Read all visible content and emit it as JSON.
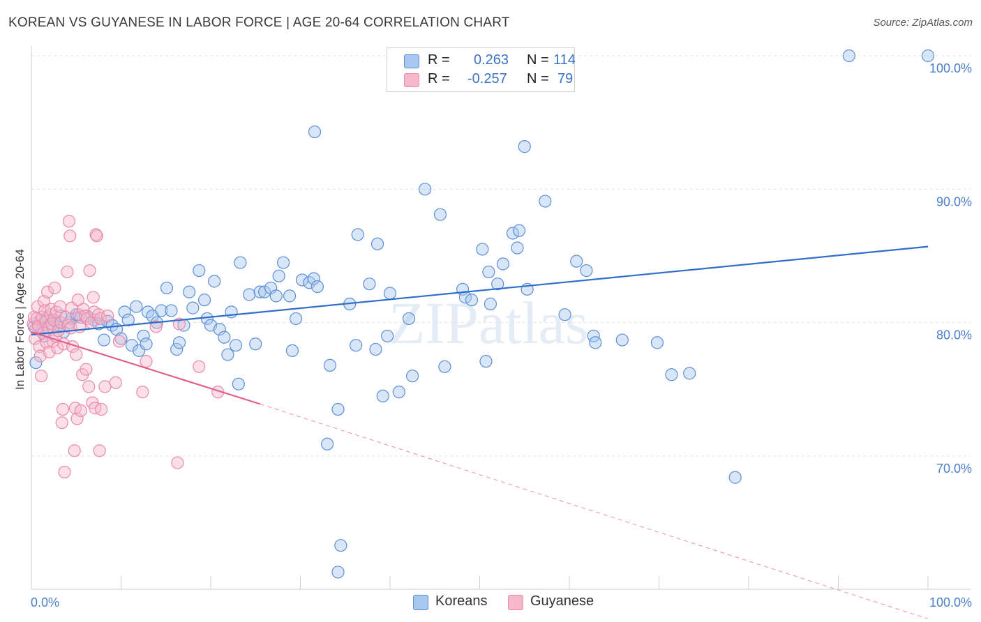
{
  "header": {
    "title": "KOREAN VS GUYANESE IN LABOR FORCE | AGE 20-64 CORRELATION CHART",
    "source": "Source: ZipAtlas.com"
  },
  "watermark": "ZIPatlas",
  "legend": {
    "rows": [
      {
        "r_label": "R =",
        "r_value": "0.263",
        "n_label": "N =",
        "n_value": "114"
      },
      {
        "r_label": "R =",
        "r_value": "-0.257",
        "n_label": "N =",
        "n_value": "79"
      }
    ],
    "bottom": [
      "Koreans",
      "Guyanese"
    ]
  },
  "colors": {
    "koreans_fill": "#a9c8f0",
    "koreans_stroke": "#5b8fd6",
    "koreans_line": "#2f6fca",
    "guyanese_fill": "#f7b8cc",
    "guyanese_stroke": "#e98aa8",
    "guyanese_line": "#e0608d",
    "tick_text": "#4a7fc7",
    "grid": "#e3e3e3"
  },
  "chart_data": {
    "type": "scatter",
    "title": "KOREAN VS GUYANESE IN LABOR FORCE | AGE 20-64 CORRELATION CHART",
    "xlabel": "",
    "ylabel": "In Labor Force | Age 20-64",
    "xlim": [
      0,
      100
    ],
    "ylim": [
      60,
      100
    ],
    "x_tick_labels": [
      "0.0%",
      "100.0%"
    ],
    "y_ticks": [
      70,
      80,
      90,
      100
    ],
    "y_tick_labels": [
      "70.0%",
      "80.0%",
      "90.0%",
      "100.0%"
    ],
    "grid": true,
    "legend_position": "top-center",
    "series": [
      {
        "name": "Koreans",
        "r": 0.263,
        "n": 114,
        "trend": {
          "x": [
            0,
            100
          ],
          "y": [
            79.1,
            85.7
          ]
        },
        "points": [
          [
            0.3,
            79.7
          ],
          [
            0.5,
            77
          ],
          [
            0.8,
            79.8
          ],
          [
            1,
            80.2
          ],
          [
            1.2,
            79.5
          ],
          [
            1.5,
            79
          ],
          [
            1.8,
            80.4
          ],
          [
            2.1,
            79.9
          ],
          [
            2.4,
            79.6
          ],
          [
            2.7,
            80.1
          ],
          [
            3,
            79.8
          ],
          [
            3.3,
            80.5
          ],
          [
            3.6,
            79.3
          ],
          [
            4.2,
            80
          ],
          [
            4.5,
            80.3
          ],
          [
            5,
            80.6
          ],
          [
            5.5,
            80.4
          ],
          [
            6.2,
            80.5
          ],
          [
            7,
            80.2
          ],
          [
            7.5,
            79.9
          ],
          [
            8.1,
            78.7
          ],
          [
            8.5,
            80.1
          ],
          [
            9,
            79.8
          ],
          [
            9.5,
            79.5
          ],
          [
            10,
            78.8
          ],
          [
            10.4,
            80.8
          ],
          [
            10.8,
            80.2
          ],
          [
            11.2,
            78.3
          ],
          [
            11.7,
            81.2
          ],
          [
            12,
            77.9
          ],
          [
            12.5,
            79
          ],
          [
            12.8,
            78.4
          ],
          [
            13,
            80.8
          ],
          [
            13.5,
            80.5
          ],
          [
            14,
            80
          ],
          [
            14.5,
            80.9
          ],
          [
            15.1,
            82.6
          ],
          [
            15.6,
            80.9
          ],
          [
            16.2,
            78
          ],
          [
            16.5,
            78.5
          ],
          [
            17,
            79.8
          ],
          [
            17.6,
            82.3
          ],
          [
            18,
            81.1
          ],
          [
            18.7,
            83.9
          ],
          [
            19.3,
            81.7
          ],
          [
            19.6,
            80.3
          ],
          [
            20,
            79.8
          ],
          [
            20.4,
            83.1
          ],
          [
            21,
            79.5
          ],
          [
            21.5,
            78.9
          ],
          [
            21.9,
            77.6
          ],
          [
            22.3,
            80.8
          ],
          [
            22.8,
            78.3
          ],
          [
            23.1,
            75.4
          ],
          [
            23.3,
            84.5
          ],
          [
            24.3,
            82.1
          ],
          [
            25,
            78.4
          ],
          [
            25.5,
            82.3
          ],
          [
            26,
            82.3
          ],
          [
            26.7,
            82.6
          ],
          [
            27.3,
            82
          ],
          [
            27.6,
            83.5
          ],
          [
            28.1,
            84.5
          ],
          [
            28.8,
            82
          ],
          [
            29.1,
            77.9
          ],
          [
            29.5,
            80.3
          ],
          [
            30.2,
            83.2
          ],
          [
            31,
            83
          ],
          [
            31.5,
            83.3
          ],
          [
            31.9,
            82.7
          ],
          [
            31.6,
            94.3
          ],
          [
            33.3,
            76.8
          ],
          [
            34.2,
            73.5
          ],
          [
            33,
            70.9
          ],
          [
            34.5,
            63.3
          ],
          [
            34.2,
            61.3
          ],
          [
            35.5,
            81.4
          ],
          [
            36.2,
            78.3
          ],
          [
            36.4,
            86.6
          ],
          [
            37.7,
            82.9
          ],
          [
            38.4,
            78
          ],
          [
            38.6,
            85.9
          ],
          [
            39.2,
            74.5
          ],
          [
            40,
            82.2
          ],
          [
            39.7,
            79
          ],
          [
            41,
            74.8
          ],
          [
            42.1,
            80.3
          ],
          [
            42.5,
            76
          ],
          [
            43.9,
            90
          ],
          [
            45.6,
            88.1
          ],
          [
            46.1,
            76.7
          ],
          [
            48.1,
            82.5
          ],
          [
            48.4,
            81.9
          ],
          [
            49.1,
            81.7
          ],
          [
            50.7,
            77.1
          ],
          [
            50.3,
            85.5
          ],
          [
            51,
            83.8
          ],
          [
            51.2,
            81.4
          ],
          [
            52,
            82.9
          ],
          [
            52.6,
            84.4
          ],
          [
            53.7,
            86.7
          ],
          [
            54.4,
            86.9
          ],
          [
            54.2,
            85.6
          ],
          [
            55,
            93.2
          ],
          [
            55.3,
            82.5
          ],
          [
            57.3,
            89.1
          ],
          [
            59.5,
            80.6
          ],
          [
            60.8,
            84.6
          ],
          [
            61.9,
            83.9
          ],
          [
            62.7,
            79
          ],
          [
            62.9,
            78.5
          ],
          [
            65.9,
            78.7
          ],
          [
            69.8,
            78.5
          ],
          [
            71.4,
            76.1
          ],
          [
            73.4,
            76.2
          ],
          [
            78.5,
            68.4
          ],
          [
            91.2,
            100
          ],
          [
            100,
            100
          ]
        ]
      },
      {
        "name": "Guyanese",
        "r": -0.257,
        "n": 79,
        "trend": {
          "x": [
            0,
            25.5
          ],
          "y": [
            79.3,
            73.9
          ]
        },
        "trend_extension": {
          "x": [
            25.5,
            100
          ],
          "y": [
            73.9,
            57.8
          ]
        },
        "points": [
          [
            0.2,
            79.9
          ],
          [
            0.3,
            80.4
          ],
          [
            0.4,
            78.8
          ],
          [
            0.5,
            79.5
          ],
          [
            0.6,
            80.3
          ],
          [
            0.7,
            81.2
          ],
          [
            0.8,
            79.7
          ],
          [
            0.9,
            78.2
          ],
          [
            1,
            77.5
          ],
          [
            1.1,
            76
          ],
          [
            1.2,
            80.4
          ],
          [
            1.3,
            79.2
          ],
          [
            1.4,
            81.6
          ],
          [
            1.5,
            80.9
          ],
          [
            1.6,
            80.1
          ],
          [
            1.7,
            78.5
          ],
          [
            1.8,
            82.3
          ],
          [
            1.9,
            79.6
          ],
          [
            2,
            77.8
          ],
          [
            2.1,
            80.6
          ],
          [
            2.2,
            81
          ],
          [
            2.3,
            79.9
          ],
          [
            2.4,
            78.6
          ],
          [
            2.5,
            80.2
          ],
          [
            2.6,
            82.6
          ],
          [
            2.7,
            79
          ],
          [
            2.8,
            80.8
          ],
          [
            2.9,
            78.1
          ],
          [
            3,
            79.4
          ],
          [
            3.2,
            81.2
          ],
          [
            3.3,
            80
          ],
          [
            3.4,
            72.5
          ],
          [
            3.5,
            73.5
          ],
          [
            3.6,
            78.4
          ],
          [
            3.7,
            68.8
          ],
          [
            3.8,
            80.4
          ],
          [
            4,
            83.8
          ],
          [
            4.1,
            79.8
          ],
          [
            4.2,
            87.6
          ],
          [
            4.3,
            86.5
          ],
          [
            4.4,
            79.6
          ],
          [
            4.5,
            81.1
          ],
          [
            4.6,
            78.2
          ],
          [
            4.8,
            70.4
          ],
          [
            4.9,
            73.6
          ],
          [
            5,
            77.6
          ],
          [
            5.1,
            72.8
          ],
          [
            5.2,
            81.7
          ],
          [
            5.3,
            80.6
          ],
          [
            5.4,
            79.7
          ],
          [
            5.5,
            73.4
          ],
          [
            5.7,
            76.1
          ],
          [
            5.8,
            81
          ],
          [
            6,
            80.5
          ],
          [
            6.1,
            76.5
          ],
          [
            6.2,
            80.3
          ],
          [
            6.4,
            75.2
          ],
          [
            6.5,
            83.9
          ],
          [
            6.7,
            80
          ],
          [
            6.8,
            74
          ],
          [
            6.9,
            81.9
          ],
          [
            7,
            80.8
          ],
          [
            7.1,
            73.6
          ],
          [
            7.2,
            86.6
          ],
          [
            7.3,
            86.5
          ],
          [
            7.5,
            80.6
          ],
          [
            7.6,
            70.4
          ],
          [
            7.7,
            80.3
          ],
          [
            7.8,
            73.5
          ],
          [
            8.2,
            75.2
          ],
          [
            8.5,
            80.5
          ],
          [
            9.4,
            75.5
          ],
          [
            9.8,
            78.6
          ],
          [
            12.8,
            77.1
          ],
          [
            12.4,
            74.8
          ],
          [
            13.9,
            79.7
          ],
          [
            16.5,
            79.9
          ],
          [
            16.3,
            69.5
          ],
          [
            18.7,
            76.7
          ],
          [
            20.8,
            74.8
          ]
        ]
      }
    ]
  }
}
